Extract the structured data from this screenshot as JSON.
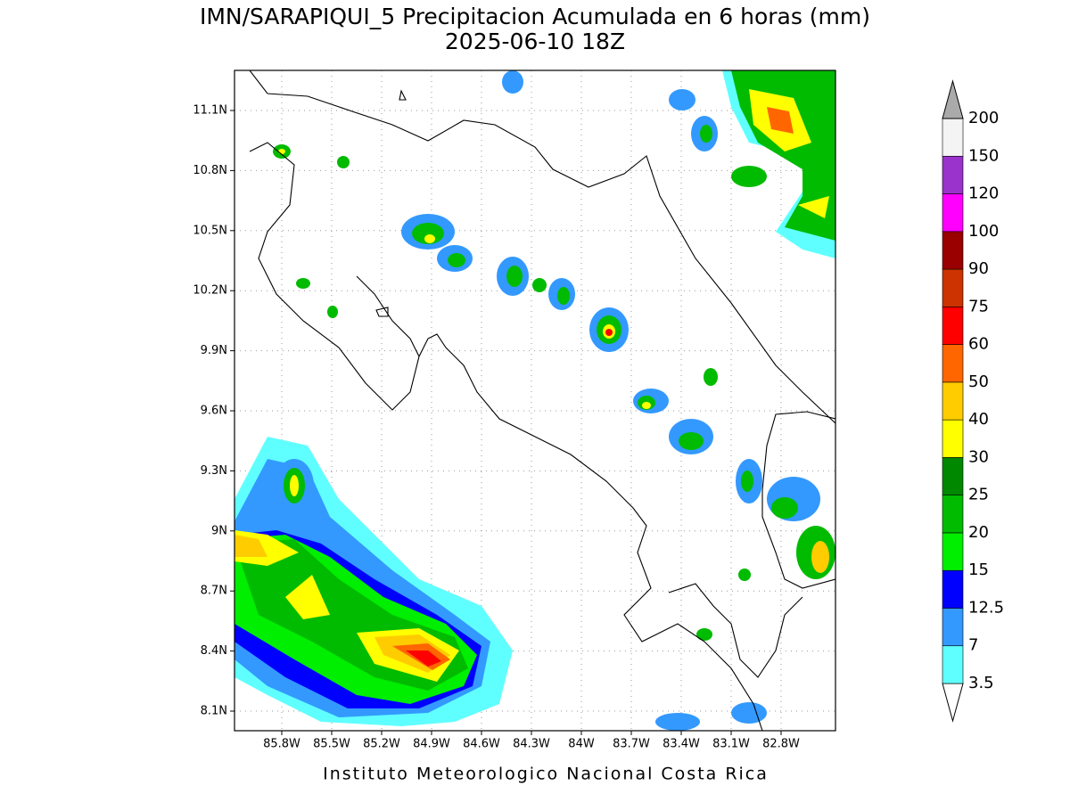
{
  "map": {
    "title": "IMN/SARAPIQUI_5 Precipitacion Acumulada en 6 horas (mm)",
    "subtitle": "2025-06-10 18Z",
    "lat_labels": [
      "11.1N",
      "10.8N",
      "10.5N",
      "10.2N",
      "9.9N",
      "9.6N",
      "9.3N",
      "9N",
      "8.7N",
      "8.4N",
      "8.1N"
    ],
    "lon_labels": [
      "85.8W",
      "85.5W",
      "85.2W",
      "84.9W",
      "84.6W",
      "84.3W",
      "84W",
      "83.7W",
      "83.4W",
      "83.1W",
      "82.8W"
    ],
    "colorbar": {
      "levels": [
        "3.5",
        "7",
        "12.5",
        "15",
        "20",
        "25",
        "30",
        "40",
        "50",
        "60",
        "75",
        "90",
        "100",
        "120",
        "150",
        "200"
      ],
      "colors": [
        "#60ffff",
        "#3399ff",
        "#0000ff",
        "#00ee00",
        "#00bb00",
        "#008800",
        "#ffff00",
        "#ffcc00",
        "#ff6600",
        "#ff0000",
        "#cc3300",
        "#990000",
        "#ff00ff",
        "#9933cc",
        "#f4f4f4"
      ]
    },
    "credit": "Instituto Meteorologico Nacional Costa Rica"
  }
}
